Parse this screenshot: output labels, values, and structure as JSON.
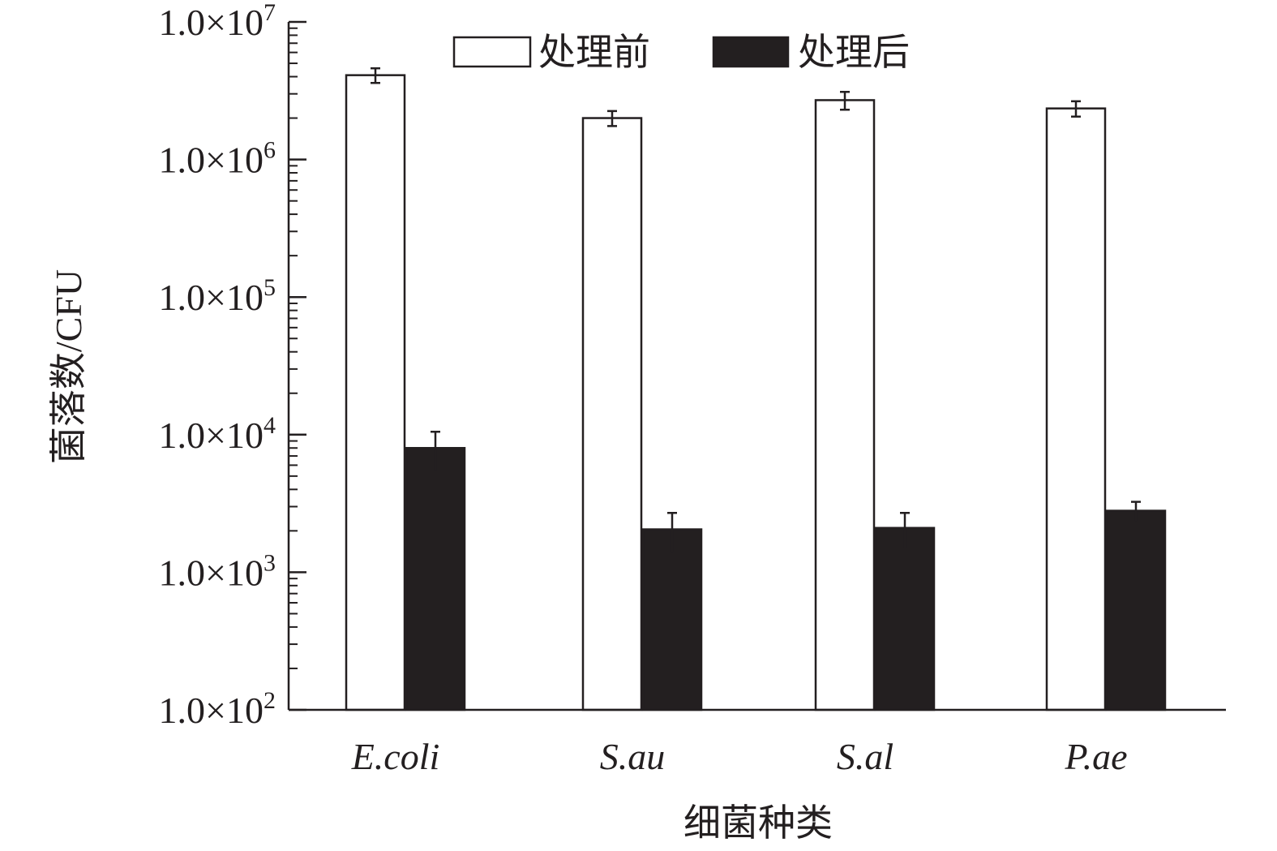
{
  "chart_data": {
    "type": "bar",
    "xlabel": "细菌种类",
    "ylabel": "菌落数/CFU",
    "yscale": "log",
    "ylim": [
      100,
      10000000
    ],
    "y_ticks": [
      {
        "value": 100,
        "base": "1.0×10",
        "exp": "2"
      },
      {
        "value": 1000,
        "base": "1.0×10",
        "exp": "3"
      },
      {
        "value": 10000,
        "base": "1.0×10",
        "exp": "4"
      },
      {
        "value": 100000,
        "base": "1.0×10",
        "exp": "5"
      },
      {
        "value": 1000000,
        "base": "1.0×10",
        "exp": "6"
      },
      {
        "value": 10000000,
        "base": "1.0×10",
        "exp": "7"
      }
    ],
    "categories": [
      "E.coli",
      "S.au",
      "S.al",
      "P.ae"
    ],
    "series": [
      {
        "name": "处理前",
        "fill": "#ffffff",
        "values": [
          4100000,
          2000000,
          2700000,
          2350000
        ],
        "error": [
          500000,
          250000,
          400000,
          300000
        ]
      },
      {
        "name": "处理后",
        "fill": "#231f20",
        "values": [
          8000,
          2050,
          2100,
          2800
        ],
        "error": [
          2500,
          650,
          600,
          450
        ]
      }
    ],
    "legend_position": "top"
  },
  "colors": {
    "ink": "#231f20",
    "background": "#ffffff"
  }
}
